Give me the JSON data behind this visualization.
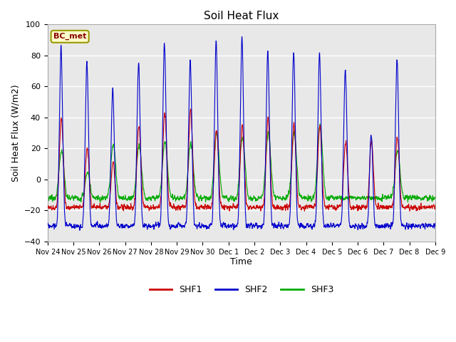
{
  "title": "Soil Heat Flux",
  "xlabel": "Time",
  "ylabel": "Soil Heat Flux (W/m2)",
  "ylim": [
    -40,
    100
  ],
  "yticks": [
    -40,
    -20,
    0,
    20,
    40,
    60,
    80,
    100
  ],
  "colors": {
    "SHF1": "#cc0000",
    "SHF2": "#0000cc",
    "SHF3": "#00aa00"
  },
  "legend_label": "BC_met",
  "legend_box_facecolor": "#ffffcc",
  "legend_box_edgecolor": "#999900",
  "bg_color": "#ffffff",
  "plot_bg_color": "#e8e8e8",
  "x_tick_labels": [
    "Nov 24",
    "Nov 25",
    "Nov 26",
    "Nov 27",
    "Nov 28",
    "Nov 29",
    "Nov 30",
    "Dec 1",
    "Dec 2",
    "Dec 3",
    "Dec 4",
    "Dec 5",
    "Dec 6",
    "Dec 7",
    "Dec 8",
    "Dec 9"
  ],
  "n_days": 15,
  "pts_per_day": 144,
  "line_width": 0.8
}
